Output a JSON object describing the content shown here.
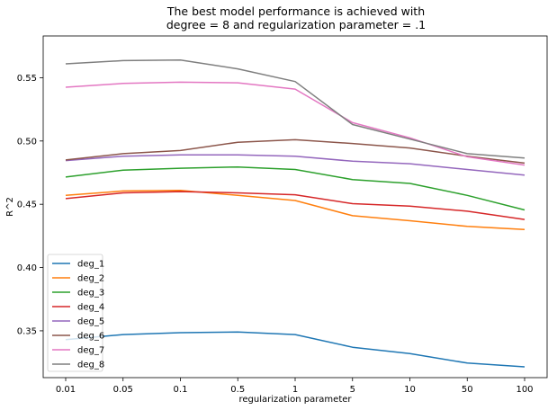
{
  "chart_data": {
    "type": "line",
    "title_lines": [
      "The best model performance is achieved with",
      "degree = 8 and regularization parameter = .1"
    ],
    "xlabel": "regularization parameter",
    "ylabel": "R^2",
    "categories": [
      "0.01",
      "0.05",
      "0.1",
      "0.5",
      "1",
      "5",
      "10",
      "50",
      "100"
    ],
    "ylim": [
      0.313,
      0.583
    ],
    "yticks": [
      0.35,
      0.4,
      0.45,
      0.5,
      0.55
    ],
    "ytick_labels": [
      "0.35",
      "0.40",
      "0.45",
      "0.50",
      "0.55"
    ],
    "grid": false,
    "legend_position": "lower-left",
    "series": [
      {
        "name": "deg_1",
        "color": "#1f77b4",
        "values": [
          0.343,
          0.347,
          0.3485,
          0.349,
          0.347,
          0.337,
          0.332,
          0.3245,
          0.3215
        ]
      },
      {
        "name": "deg_2",
        "color": "#ff7f0e",
        "values": [
          0.457,
          0.4605,
          0.461,
          0.457,
          0.453,
          0.441,
          0.437,
          0.4325,
          0.43
        ]
      },
      {
        "name": "deg_3",
        "color": "#2ca02c",
        "values": [
          0.4715,
          0.477,
          0.4785,
          0.4795,
          0.4775,
          0.4695,
          0.4665,
          0.457,
          0.4455
        ]
      },
      {
        "name": "deg_4",
        "color": "#d62728",
        "values": [
          0.4545,
          0.459,
          0.46,
          0.459,
          0.4575,
          0.4505,
          0.4485,
          0.4445,
          0.438
        ]
      },
      {
        "name": "deg_5",
        "color": "#9467bd",
        "values": [
          0.4845,
          0.488,
          0.489,
          0.489,
          0.488,
          0.484,
          0.482,
          0.4775,
          0.473
        ]
      },
      {
        "name": "deg_6",
        "color": "#8c564b",
        "values": [
          0.485,
          0.49,
          0.4925,
          0.499,
          0.501,
          0.498,
          0.4945,
          0.488,
          0.4825
        ]
      },
      {
        "name": "deg_7",
        "color": "#e377c2",
        "values": [
          0.5425,
          0.5455,
          0.5465,
          0.546,
          0.541,
          0.5145,
          0.5025,
          0.4875,
          0.481
        ]
      },
      {
        "name": "deg_8",
        "color": "#7f7f7f",
        "values": [
          0.561,
          0.5635,
          0.564,
          0.557,
          0.547,
          0.513,
          0.5015,
          0.49,
          0.4865
        ]
      }
    ]
  }
}
